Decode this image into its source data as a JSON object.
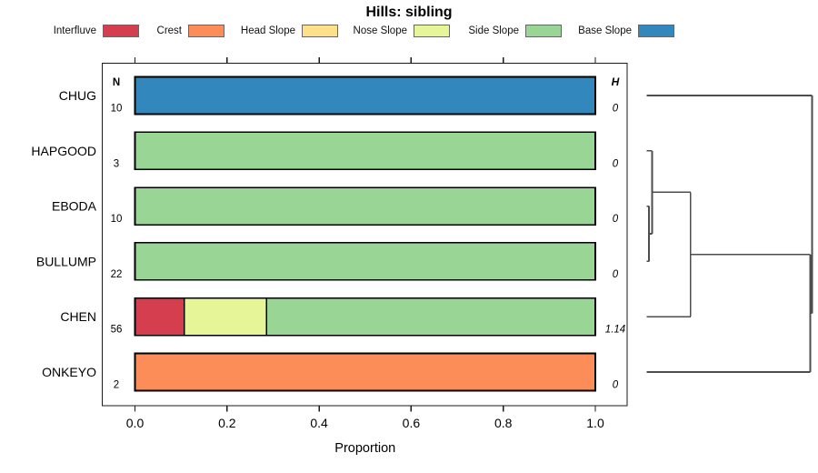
{
  "chart_data": {
    "type": "bar",
    "variant": "horizontal_stacked_proportion_with_dendrogram",
    "title": "Hills: sibling",
    "xlabel": "Proportion",
    "xlim": [
      0,
      1
    ],
    "x_tick_labels": [
      "0.0",
      "0.2",
      "0.4",
      "0.6",
      "0.8",
      "1.0"
    ],
    "grid": false,
    "legend_position": "top",
    "categories": [
      "CHUG",
      "HAPGOOD",
      "EBODA",
      "BULLUMP",
      "CHEN",
      "ONKEYO"
    ],
    "n_header": "N",
    "h_header": "H",
    "n_values": [
      "10",
      "3",
      "10",
      "22",
      "56",
      "2"
    ],
    "h_values": [
      "0",
      "0",
      "0",
      "0",
      "1.14",
      "0"
    ],
    "series": [
      {
        "name": "Interfluve",
        "color": "#d53e4f",
        "values": [
          0,
          0,
          0,
          0,
          0.107,
          0
        ]
      },
      {
        "name": "Crest",
        "color": "#fc8d59",
        "values": [
          0,
          0,
          0,
          0,
          0,
          1
        ]
      },
      {
        "name": "Head Slope",
        "color": "#fee08b",
        "values": [
          0,
          0,
          0,
          0,
          0,
          0
        ]
      },
      {
        "name": "Nose Slope",
        "color": "#e6f598",
        "values": [
          0,
          0,
          0,
          0,
          0.179,
          0
        ]
      },
      {
        "name": "Side Slope",
        "color": "#99d594",
        "values": [
          0,
          1,
          1,
          1,
          0.714,
          0
        ]
      },
      {
        "name": "Base Slope",
        "color": "#3288bd",
        "values": [
          1,
          0,
          0,
          0,
          0,
          0
        ]
      }
    ],
    "dendrogram": {
      "leaves": [
        "CHUG",
        "HAPGOOD",
        "EBODA",
        "BULLUMP",
        "CHEN",
        "ONKEYO"
      ],
      "merges": [
        {
          "a": "EBODA",
          "b": "BULLUMP",
          "height": 0.014
        },
        {
          "a": "HAPGOOD",
          "b": "m0",
          "height": 0.033
        },
        {
          "a": "m1",
          "b": "CHEN",
          "height": 0.266
        },
        {
          "a": "m2",
          "b": "ONKEYO",
          "height": 0.989
        },
        {
          "a": "CHUG",
          "b": "m3",
          "height": 1.0
        }
      ]
    }
  }
}
